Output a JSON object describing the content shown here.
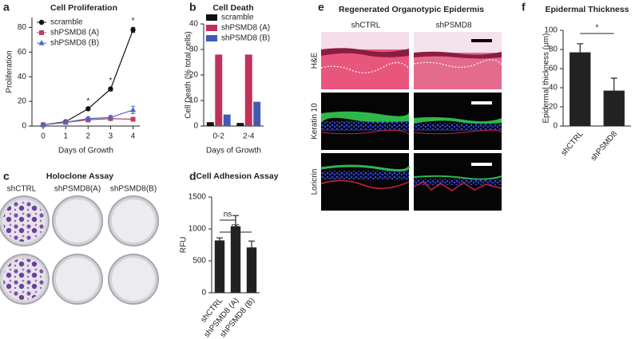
{
  "chart_data": [
    {
      "type": "line",
      "panel": "a",
      "title": "Cell Proliferation",
      "x_label": "Days of Growth",
      "y_label": "Proliferation",
      "x": [
        0,
        1,
        2,
        3,
        4
      ],
      "xlim": [
        -0.5,
        4.3
      ],
      "xticks": [
        0,
        1,
        2,
        3,
        4
      ],
      "ylim": [
        0,
        88
      ],
      "yticks": [
        0,
        20,
        40,
        60,
        80
      ],
      "legend": "upper left",
      "series": [
        {
          "name": "scramble",
          "color": "#111111",
          "marker": "circle",
          "values": [
            1,
            3.5,
            14,
            30,
            78
          ],
          "errors": [
            0.5,
            0.5,
            1,
            1.5,
            2
          ]
        },
        {
          "name": "shPSMD8 (A)",
          "color": "#c43c62",
          "marker": "square",
          "values": [
            1,
            3,
            5,
            6,
            5.5
          ],
          "errors": [
            0.3,
            0.5,
            1.5,
            1.5,
            1
          ]
        },
        {
          "name": "shPSMD8 (B)",
          "color": "#4a68c0",
          "marker": "triangle",
          "values": [
            1,
            3,
            6,
            7,
            13
          ],
          "errors": [
            0.3,
            0.5,
            1.5,
            1.5,
            3
          ]
        }
      ],
      "annotations": [
        {
          "x": 2,
          "text": "*"
        },
        {
          "x": 3,
          "text": "*"
        },
        {
          "x": 4,
          "text": "*"
        }
      ]
    },
    {
      "type": "bar",
      "panel": "b",
      "title": "Cell Death",
      "x_label": "Days of Growth",
      "y_label": "Cell Death (% total cells)",
      "categories": [
        "0-2",
        "2-4"
      ],
      "ylim": [
        0,
        40
      ],
      "yticks": [
        0,
        10,
        20,
        30,
        40
      ],
      "legend": "upper right",
      "series": [
        {
          "name": "scramble",
          "color": "#111111",
          "values": [
            1.5,
            1.2
          ]
        },
        {
          "name": "shPSMD8 (A)",
          "color": "#c0305a",
          "values": [
            28,
            28
          ]
        },
        {
          "name": "shPSMD8 (B)",
          "color": "#3f5bb5",
          "values": [
            4.5,
            9.5
          ]
        }
      ]
    },
    {
      "type": "bar",
      "panel": "d",
      "title": "Cell Adhesion Assay",
      "y_label": "RFU",
      "categories": [
        "shCTRL",
        "shPSMD8 (A)",
        "shPSMD8 (B)"
      ],
      "values": [
        820,
        1040,
        710
      ],
      "errors": [
        40,
        170,
        100
      ],
      "color": "#222222",
      "ylim": [
        0,
        1500
      ],
      "yticks": [
        0,
        500,
        1000,
        1500
      ],
      "brackets": [
        {
          "from": "shCTRL",
          "to": "shPSMD8 (A)",
          "text": "ns"
        },
        {
          "from": "shCTRL",
          "to": "shPSMD8 (B)",
          "text": "ns"
        }
      ]
    },
    {
      "type": "bar",
      "panel": "f",
      "title": "Epidermal Thickness",
      "y_label": "Epidermal thickness (μm)",
      "categories": [
        "shCTRL",
        "shPSMD8"
      ],
      "values": [
        77,
        37
      ],
      "errors": [
        9,
        13
      ],
      "color": "#222222",
      "ylim": [
        0,
        100
      ],
      "yticks": [
        0,
        20,
        40,
        60,
        80,
        100
      ],
      "brackets": [
        {
          "from": "shCTRL",
          "to": "shPSMD8",
          "text": "*"
        }
      ]
    }
  ],
  "holoclone_panel": {
    "panel": "c",
    "title": "Holoclone Assay",
    "columns": [
      "shCTRL",
      "shPSMD8(A)",
      "shPSMD8(B)"
    ]
  },
  "epidermis_panel": {
    "panel": "e",
    "title": "Regenerated Organotypic Epidermis",
    "columns": [
      "shCTRL",
      "shPSMD8"
    ],
    "rows": [
      "H&E",
      "Keratin 10",
      "Loricrin"
    ]
  }
}
